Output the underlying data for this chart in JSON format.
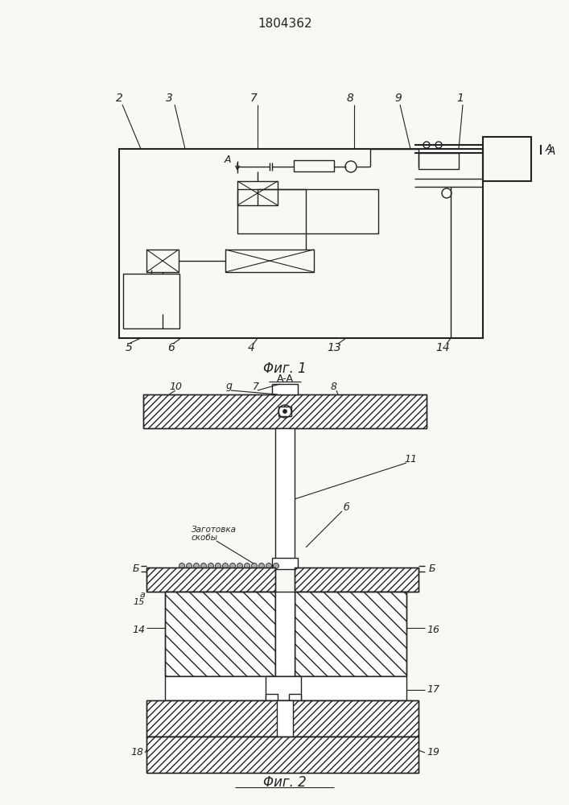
{
  "title": "1804362",
  "fig1_label": "Φиг. 1",
  "fig2_label": "Φиг. 2",
  "section_label": "A-A",
  "bg_color": "#f8f8f5",
  "line_color": "#222222",
  "fig_width": 7.07,
  "fig_height": 10.0,
  "dpi": 100
}
